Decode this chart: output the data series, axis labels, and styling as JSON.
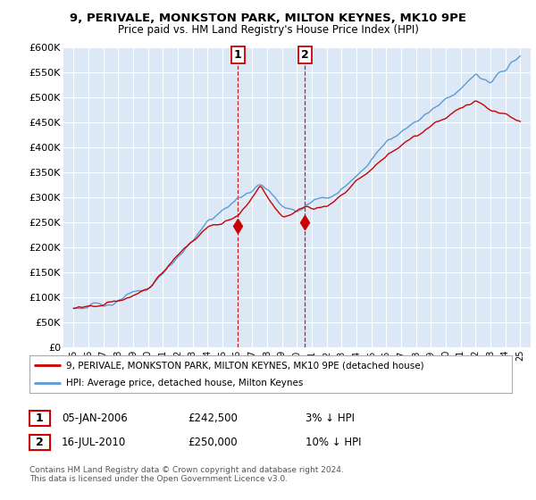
{
  "title_line1": "9, PERIVALE, MONKSTON PARK, MILTON KEYNES, MK10 9PE",
  "title_line2": "Price paid vs. HM Land Registry's House Price Index (HPI)",
  "legend_label_red": "9, PERIVALE, MONKSTON PARK, MILTON KEYNES, MK10 9PE (detached house)",
  "legend_label_blue": "HPI: Average price, detached house, Milton Keynes",
  "annotation1_date": "05-JAN-2006",
  "annotation1_price": "£242,500",
  "annotation1_pct": "3% ↓ HPI",
  "annotation2_date": "16-JUL-2010",
  "annotation2_price": "£250,000",
  "annotation2_pct": "10% ↓ HPI",
  "footnote": "Contains HM Land Registry data © Crown copyright and database right 2024.\nThis data is licensed under the Open Government Licence v3.0.",
  "red_color": "#cc0000",
  "blue_color": "#5b9bd5",
  "shade_color": "#ddeaf6",
  "background_chart": "#dce8f5",
  "background_fig": "#ffffff",
  "grid_color": "#ffffff",
  "ylim": [
    0,
    600000
  ],
  "yticks": [
    0,
    50000,
    100000,
    150000,
    200000,
    250000,
    300000,
    350000,
    400000,
    450000,
    500000,
    550000,
    600000
  ],
  "sale1_x": 2006.04,
  "sale1_y": 242500,
  "sale2_x": 2010.54,
  "sale2_y": 250000,
  "xlim_min": 1994.3,
  "xlim_max": 2025.7
}
